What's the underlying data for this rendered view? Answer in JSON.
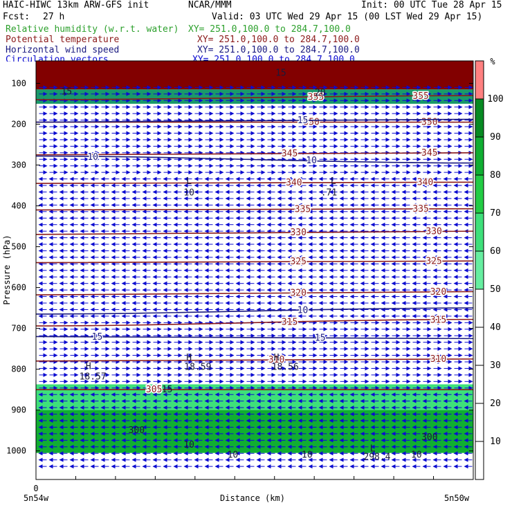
{
  "header": {
    "model": "HAIC-HIWC 13km ARW-GFS init",
    "center": "NCAR/MMM",
    "init": "Init: 00 UTC Tue 28 Apr 15",
    "fcst_label": "Fcst:",
    "fcst_value": "27 h",
    "valid": "Valid: 03 UTC Wed 29 Apr 15 (00 LST Wed 29 Apr 15)",
    "fields": [
      {
        "name": "Relative humidity (w.r.t. water)",
        "xy": "XY= 251.0,100.0 to 284.7,100.0",
        "color": "#2ca02c"
      },
      {
        "name": "Potential temperature",
        "xy": "XY= 251.0,100.0 to 284.7,100.0",
        "color": "#8b1a1a"
      },
      {
        "name": "Horizontal wind speed",
        "xy": "XY= 251.0,100.0 to 284.7,100.0",
        "color": "#1a1a80"
      },
      {
        "name": "Circulation vectors",
        "xy": "XY= 251.0,100.0 to 284.7,100.0",
        "color": "#0b0bd0"
      }
    ]
  },
  "chart_data": {
    "type": "heatmap",
    "title": "",
    "xlabel": "Distance (km)",
    "ylabel": "Pressure (hPa)",
    "x_ticks": {
      "left": "0",
      "start_label": "5n54w",
      "end_label": "5n50w"
    },
    "y_ticks": [
      100,
      200,
      300,
      400,
      500,
      600,
      700,
      800,
      900,
      1000
    ],
    "ylim": [
      1070,
      45
    ],
    "colorbar": {
      "unit": "%",
      "levels": [
        10,
        20,
        30,
        40,
        50,
        60,
        70,
        80,
        90,
        100
      ],
      "bands": [
        {
          "from": 0,
          "to": 50,
          "color": "#ffffff"
        },
        {
          "from": 50,
          "to": 60,
          "color": "#66eea0"
        },
        {
          "from": 60,
          "to": 70,
          "color": "#3ee07a"
        },
        {
          "from": 70,
          "to": 80,
          "color": "#22cc44"
        },
        {
          "from": 80,
          "to": 90,
          "color": "#10ae32"
        },
        {
          "from": 90,
          "to": 100,
          "color": "#078a22"
        },
        {
          "from": 100,
          "to": 110,
          "color": "#ff8080"
        }
      ]
    },
    "rh_regions": [
      {
        "top": 45,
        "bottom": 115,
        "color": "#820000"
      },
      {
        "top": 115,
        "bottom": 150,
        "color": "#1a9a6a"
      },
      {
        "top": 837,
        "bottom": 900,
        "color": "#3ee07a"
      },
      {
        "top": 900,
        "bottom": 1005,
        "color": "#10ae32"
      }
    ],
    "theta_contours": [
      {
        "value": "305",
        "p_left": 850,
        "p_right": 850,
        "label_x": [
          0.48,
          0.15
        ]
      },
      {
        "value": "310",
        "p_left": 780,
        "p_right": 775,
        "label_x": [
          0.55,
          0.92
        ]
      },
      {
        "value": "315",
        "p_left": 694,
        "p_right": 678,
        "label_x": [
          0.58,
          0.92
        ]
      },
      {
        "value": "320",
        "p_left": 618,
        "p_right": 610,
        "label_x": [
          0.6,
          0.92
        ]
      },
      {
        "value": "325",
        "p_left": 539,
        "p_right": 535,
        "label_x": [
          0.6,
          0.91
        ]
      },
      {
        "value": "330",
        "p_left": 470,
        "p_right": 462,
        "label_x": [
          0.6,
          0.91
        ]
      },
      {
        "value": "335",
        "p_left": 410,
        "p_right": 407,
        "label_x": [
          0.61,
          0.88
        ]
      },
      {
        "value": "340",
        "p_left": 345,
        "p_right": 342,
        "label_x": [
          0.59,
          0.89
        ]
      },
      {
        "value": "345",
        "p_left": 275,
        "p_right": 270,
        "label_x": [
          0.58,
          0.9
        ]
      },
      {
        "value": "350",
        "p_left": 195,
        "p_right": 195,
        "label_x": [
          0.63,
          0.9
        ]
      },
      {
        "value": "355",
        "p_left": 140,
        "p_right": 130,
        "label_x": [
          0.64,
          0.88
        ]
      }
    ],
    "wind_contours": [
      {
        "value": "10",
        "p_left": 278,
        "p_right": 295,
        "label_x": [
          0.13,
          0.63
        ]
      },
      {
        "value": "10",
        "p_left": 665,
        "p_right": 650,
        "label_x": [
          0.61,
          0.61
        ]
      },
      {
        "value": "15",
        "p_left": 720,
        "p_right": 725,
        "label_x": [
          0.14,
          0.65
        ]
      },
      {
        "value": "15",
        "p_left": 195,
        "p_right": 188,
        "label_x": [
          0.61,
          0.61
        ]
      }
    ],
    "annotations": [
      {
        "text": "L",
        "x": 0.35,
        "p": 340
      },
      {
        "text": "10",
        "x": 0.35,
        "p": 368
      },
      {
        "text": "L",
        "x": 0.68,
        "p": 340
      },
      {
        "text": ".71",
        "x": 0.67,
        "p": 368
      },
      {
        "text": "H",
        "x": 0.12,
        "p": 793
      },
      {
        "text": "18.57",
        "x": 0.13,
        "p": 818
      },
      {
        "text": "H",
        "x": 0.35,
        "p": 772
      },
      {
        "text": "18.59",
        "x": 0.37,
        "p": 795
      },
      {
        "text": "H",
        "x": 0.55,
        "p": 772
      },
      {
        "text": "18.56",
        "x": 0.57,
        "p": 795
      },
      {
        "text": "L",
        "x": 0.77,
        "p": 995
      },
      {
        "text": "298.4",
        "x": 0.78,
        "p": 1015
      },
      {
        "text": "15",
        "x": 0.3,
        "p": 850
      },
      {
        "text": "10",
        "x": 0.35,
        "p": 985
      },
      {
        "text": "10",
        "x": 0.45,
        "p": 1010
      },
      {
        "text": "10",
        "x": 0.62,
        "p": 1010
      },
      {
        "text": "10",
        "x": 0.87,
        "p": 1010
      },
      {
        "text": "300",
        "x": 0.23,
        "p": 950
      },
      {
        "text": "300",
        "x": 0.9,
        "p": 967
      },
      {
        "text": "15",
        "x": 0.07,
        "p": 120
      },
      {
        "text": "20",
        "x": 0.65,
        "p": 123
      },
      {
        "text": "15",
        "x": 0.56,
        "p": 75
      }
    ]
  }
}
